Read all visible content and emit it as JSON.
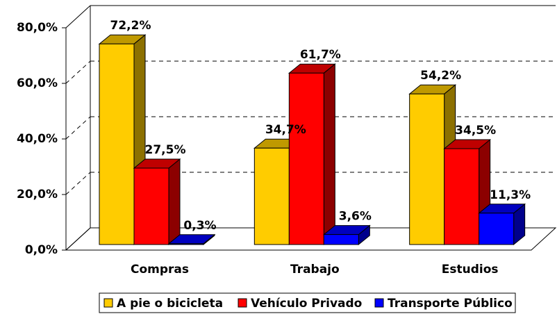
{
  "chart_data": {
    "type": "bar3d",
    "categories": [
      "Compras",
      "Trabajo",
      "Estudios"
    ],
    "series": [
      {
        "name": "A pie o bicicleta",
        "color": "#FFCC00",
        "values": [
          72.2,
          34.7,
          54.2
        ],
        "value_labels": [
          "72,2%",
          "34,7%",
          "54,2%"
        ]
      },
      {
        "name": "Vehículo Privado",
        "color": "#FF0000",
        "values": [
          27.5,
          61.7,
          34.5
        ],
        "value_labels": [
          "27,5%",
          "61,7%",
          "34,5%"
        ]
      },
      {
        "name": "Transporte Público",
        "color": "#0000FF",
        "values": [
          0.3,
          3.6,
          11.3
        ],
        "value_labels": [
          "0,3%",
          "3,6%",
          "11,3%"
        ]
      }
    ],
    "ylim": [
      0,
      80
    ],
    "yticks": [
      {
        "value": 0,
        "label": "0,0%"
      },
      {
        "value": 20,
        "label": "20,0%"
      },
      {
        "value": 40,
        "label": "40,0%"
      },
      {
        "value": 60,
        "label": "60,0%"
      },
      {
        "value": 80,
        "label": "80,0%"
      }
    ],
    "grid": true,
    "legend": "bottom"
  }
}
